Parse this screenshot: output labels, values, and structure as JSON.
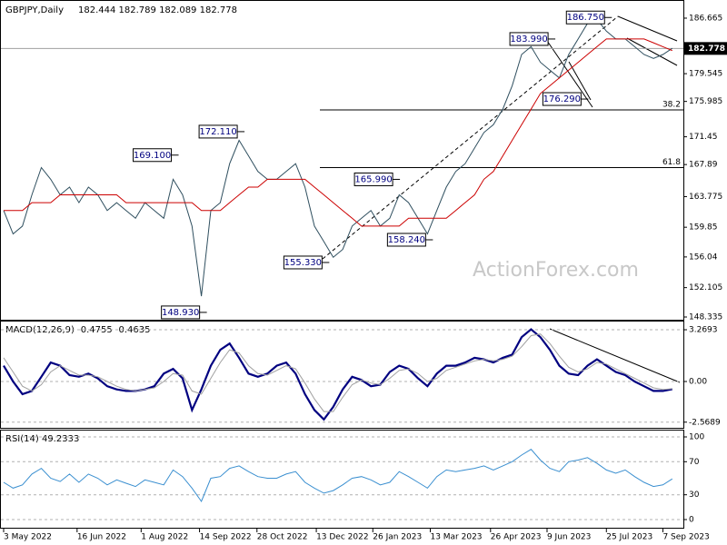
{
  "chart_data": [
    {
      "type": "line",
      "title": "GBPJPY,Daily",
      "subtitle": "182.444 182.789 182.089 182.778",
      "watermark": "ActionForex.com",
      "ylim": [
        148.22,
        188.41
      ],
      "yticks": [
        186.665,
        179.545,
        175.985,
        171.45,
        167.89,
        163.775,
        159.85,
        156.04,
        152.105,
        148.335
      ],
      "last_price": 182.778,
      "series": [
        {
          "name": "Close",
          "color": "#2f4f5f",
          "values": [
            162,
            159,
            160,
            164,
            167.5,
            166,
            164,
            165,
            163,
            165,
            164,
            162,
            163,
            162,
            161,
            163,
            162,
            161,
            166,
            164,
            160,
            151,
            162,
            163,
            168,
            171,
            169,
            167,
            166,
            166,
            167,
            168,
            165,
            160,
            158,
            156,
            157,
            160,
            161,
            162,
            160,
            161,
            164,
            163,
            161,
            159,
            162,
            165,
            167,
            168,
            170,
            172,
            173,
            175,
            178,
            182,
            183,
            181,
            180,
            179,
            182,
            184,
            186,
            186.5,
            185,
            184,
            184,
            183,
            182,
            181.5,
            182,
            182.8
          ]
        },
        {
          "name": "SMA",
          "color": "#cc0000",
          "values": [
            162,
            162,
            162,
            163,
            163,
            163,
            164,
            164,
            164,
            164,
            164,
            164,
            164,
            163,
            163,
            163,
            163,
            163,
            163,
            163,
            163,
            162,
            162,
            162,
            163,
            164,
            165,
            165,
            166,
            166,
            166,
            166,
            166,
            165,
            164,
            163,
            162,
            161,
            160,
            160,
            160,
            160,
            160,
            161,
            161,
            161,
            161,
            161,
            162,
            163,
            164,
            166,
            167,
            169,
            171,
            173,
            175,
            177,
            178,
            179,
            180,
            181,
            182,
            183,
            184,
            184,
            184,
            184,
            184,
            183.5,
            183,
            182.5
          ]
        }
      ],
      "annotations": [
        {
          "label": "186.750",
          "value": 186.75,
          "x": 64
        },
        {
          "label": "183.990",
          "value": 183.99,
          "x": 58
        },
        {
          "label": "176.290",
          "value": 176.29,
          "x": 61.5
        },
        {
          "label": "172.110",
          "value": 172.11,
          "x": 25
        },
        {
          "label": "169.100",
          "value": 169.1,
          "x": 18
        },
        {
          "label": "165.990",
          "value": 165.99,
          "x": 41.5
        },
        {
          "label": "158.240",
          "value": 158.24,
          "x": 45
        },
        {
          "label": "155.330",
          "value": 155.33,
          "x": 34
        },
        {
          "label": "148.930",
          "value": 148.93,
          "x": 21
        }
      ],
      "levels": [
        {
          "label": "38.2",
          "value": 174.9
        },
        {
          "label": "61.8",
          "value": 167.5
        }
      ]
    },
    {
      "type": "line",
      "title": "MACD(12,26,9) -0.4755 -0.4635",
      "ylim": [
        -2.87,
        3.73
      ],
      "yticks": [
        3.2693,
        {
          "value": 0,
          "label": "0.00"
        },
        -2.5689
      ],
      "grid": true,
      "series": [
        {
          "name": "MACD",
          "color": "#000080",
          "values": [
            1,
            0,
            -0.8,
            -0.6,
            0.3,
            1.2,
            1.0,
            0.4,
            0.3,
            0.5,
            0.2,
            -0.3,
            -0.5,
            -0.6,
            -0.6,
            -0.5,
            -0.3,
            0.5,
            0.8,
            0.2,
            -1.8,
            -0.5,
            1.0,
            2.0,
            2.4,
            1.5,
            0.5,
            0.3,
            0.5,
            1.0,
            1.2,
            0.5,
            -0.8,
            -1.8,
            -2.4,
            -1.6,
            -0.5,
            0.3,
            0.1,
            -0.3,
            -0.2,
            0.6,
            1.0,
            0.8,
            0.2,
            -0.3,
            0.5,
            1.0,
            1.0,
            1.2,
            1.5,
            1.4,
            1.2,
            1.5,
            1.7,
            2.8,
            3.3,
            2.8,
            2.0,
            1.0,
            0.5,
            0.4,
            1.0,
            1.4,
            1.0,
            0.6,
            0.4,
            0.0,
            -0.3,
            -0.6,
            -0.6,
            -0.48
          ]
        },
        {
          "name": "Signal",
          "color": "#a0a0a0",
          "values": [
            1.5,
            0.6,
            -0.3,
            -0.6,
            -0.2,
            0.6,
            1.0,
            0.7,
            0.4,
            0.4,
            0.3,
            0,
            -0.3,
            -0.5,
            -0.6,
            -0.5,
            -0.4,
            0,
            0.5,
            0.4,
            -0.6,
            -0.8,
            0.2,
            1.2,
            2.0,
            1.8,
            1.0,
            0.5,
            0.4,
            0.7,
            1.0,
            0.8,
            -0.1,
            -1.1,
            -1.9,
            -1.9,
            -1.0,
            -0.2,
            0.1,
            -0.1,
            -0.2,
            0.2,
            0.7,
            0.8,
            0.5,
            0.0,
            0.2,
            0.7,
            0.9,
            1.1,
            1.3,
            1.4,
            1.3,
            1.4,
            1.6,
            2.2,
            2.9,
            3.0,
            2.4,
            1.6,
            0.9,
            0.6,
            0.8,
            1.2,
            1.1,
            0.8,
            0.5,
            0.2,
            -0.1,
            -0.4,
            -0.5,
            -0.46
          ]
        }
      ]
    },
    {
      "type": "line",
      "title": "RSI(14) 49.2333",
      "ylim": [
        -8.8,
        106.6
      ],
      "yticks": [
        100,
        70,
        30,
        0
      ],
      "grid": true,
      "series": [
        {
          "name": "RSI",
          "color": "#3a8fd0",
          "values": [
            45,
            38,
            42,
            55,
            62,
            50,
            46,
            55,
            45,
            55,
            50,
            42,
            48,
            44,
            40,
            48,
            45,
            42,
            60,
            52,
            38,
            22,
            50,
            52,
            62,
            65,
            58,
            52,
            50,
            50,
            55,
            58,
            45,
            38,
            32,
            35,
            42,
            50,
            52,
            48,
            42,
            45,
            58,
            52,
            45,
            38,
            52,
            60,
            58,
            60,
            62,
            65,
            60,
            65,
            70,
            78,
            85,
            72,
            62,
            58,
            70,
            72,
            75,
            68,
            60,
            56,
            60,
            52,
            45,
            40,
            42,
            49.2
          ]
        }
      ],
      "xlim": [
        0,
        71.5
      ],
      "xticks": [
        {
          "value": 0,
          "label": "3 May 2022"
        },
        {
          "value": 7.8,
          "label": "16 Jun 2022"
        },
        {
          "value": 14.6,
          "label": "1 Aug 2022"
        },
        {
          "value": 20.8,
          "label": "14 Sep 2022"
        },
        {
          "value": 26.9,
          "label": "28 Oct 2022"
        },
        {
          "value": 33.2,
          "label": "13 Dec 2022"
        },
        {
          "value": 39.2,
          "label": "26 Jan 2023"
        },
        {
          "value": 45.3,
          "label": "13 Mar 2023"
        },
        {
          "value": 51.7,
          "label": "26 Apr 2023"
        },
        {
          "value": 57.7,
          "label": "9 Jun 2023"
        },
        {
          "value": 64.0,
          "label": "25 Jul 2023"
        },
        {
          "value": 70.0,
          "label": "7 Sep 2023"
        }
      ]
    }
  ]
}
